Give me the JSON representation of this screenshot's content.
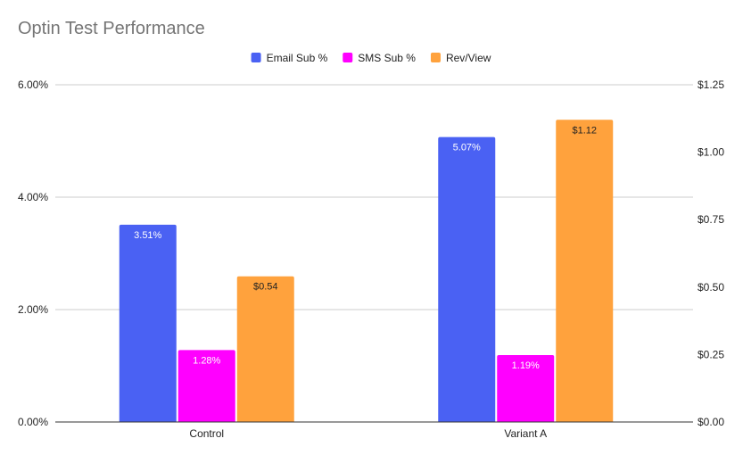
{
  "chart_data": {
    "type": "bar",
    "title": "Optin Test Performance",
    "categories": [
      "Control",
      "Variant A"
    ],
    "series": [
      {
        "name": "Email Sub %",
        "axis": "left",
        "color": "#4a61f3",
        "values": [
          3.51,
          5.07
        ],
        "labels": [
          "3.51%",
          "5.07%"
        ],
        "label_color": "#ffffff"
      },
      {
        "name": "SMS Sub %",
        "axis": "left",
        "color": "#ff00ff",
        "values": [
          1.28,
          1.19
        ],
        "labels": [
          "1.28%",
          "1.19%"
        ],
        "label_color": "#ffffff"
      },
      {
        "name": "Rev/View",
        "axis": "right",
        "color": "#ffa23d",
        "values": [
          0.54,
          1.12
        ],
        "labels": [
          "$0.54",
          "$1.12"
        ],
        "label_color": "#222222"
      }
    ],
    "y_left": {
      "min": 0,
      "max": 6,
      "ticks": [
        0,
        2,
        4,
        6
      ],
      "tick_labels": [
        "0.00%",
        "2.00%",
        "4.00%",
        "6.00%"
      ]
    },
    "y_right": {
      "min": 0,
      "max": 1.25,
      "ticks": [
        0,
        0.25,
        0.5,
        0.75,
        1.0,
        1.25
      ],
      "tick_labels": [
        "$0.00",
        "$0.25",
        "$0.50",
        "$0.75",
        "$1.00",
        "$1.25"
      ]
    },
    "legend_position": "top-center",
    "grid": true
  }
}
